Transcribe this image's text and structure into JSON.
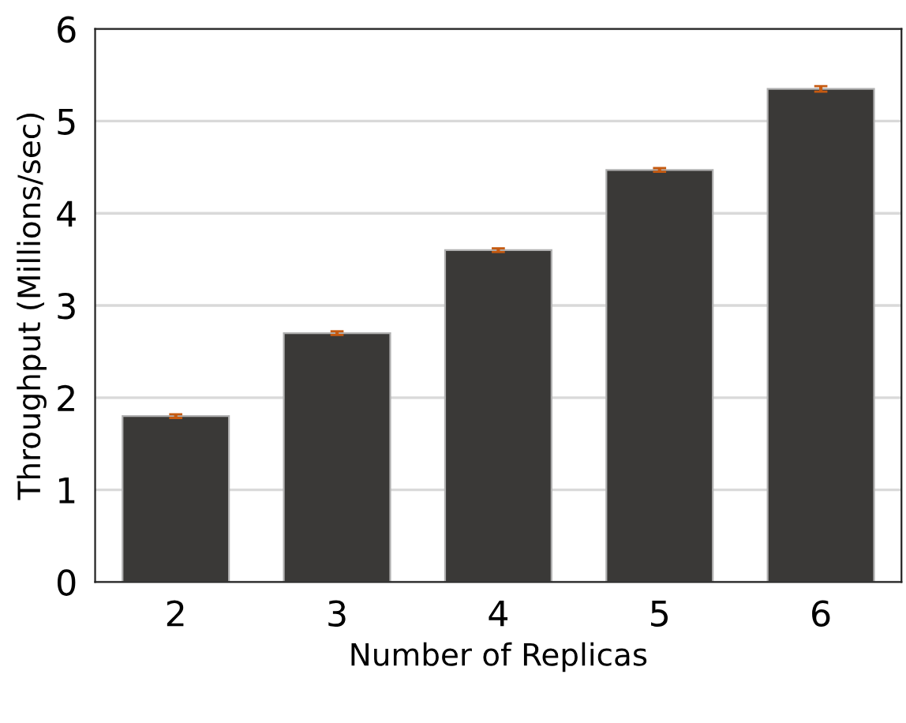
{
  "chart_data": {
    "type": "bar",
    "xlabel": "Number of Replicas",
    "ylabel": "Throughput (Millions/sec)",
    "categories": [
      "2",
      "3",
      "4",
      "5",
      "6"
    ],
    "values": [
      1.8,
      2.7,
      3.6,
      4.47,
      5.35
    ],
    "errors": [
      0.02,
      0.02,
      0.02,
      0.02,
      0.03
    ],
    "color": "#3a3937",
    "ylim": [
      0,
      6
    ],
    "yticks": [
      0,
      1,
      2,
      3,
      4,
      5,
      6
    ],
    "grid": "y",
    "legend": false
  }
}
